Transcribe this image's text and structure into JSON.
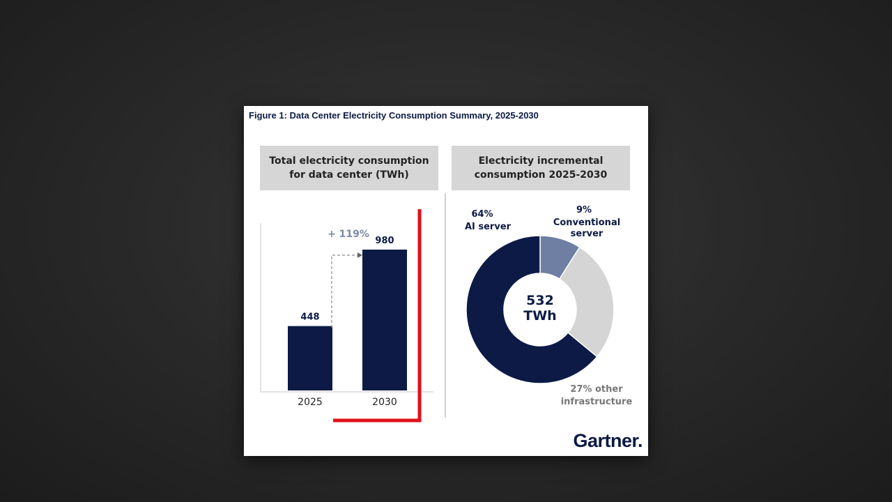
{
  "figure_title": "Figure 1: Data Center Electricity Consumption Summary, 2025-2030",
  "logo": "Gartner",
  "colors": {
    "navy": "#0c1a45",
    "slate": "#6f7fa3",
    "grey": "#d5d5d5",
    "highlight_red": "#e0101a",
    "background": "#2a2a2a"
  },
  "chart_data": [
    {
      "type": "bar",
      "title": "Total electricity consumption\nfor data center (TWh)",
      "categories": [
        "2025",
        "2030"
      ],
      "values": [
        448,
        980
      ],
      "value_labels": [
        "448",
        "980"
      ],
      "annotation": "+ 119%",
      "ylim": [
        0,
        1100
      ],
      "grid": false
    },
    {
      "type": "pie",
      "title": "Electricity incremental\nconsumption 2025-2030",
      "center_label": "532\nTWh",
      "center_value": "532",
      "center_unit": "TWh",
      "slices": [
        {
          "label_line1": "9%",
          "label_line2": "Conventional",
          "label_line3": "server",
          "value": 9
        },
        {
          "label_line1": "27% other",
          "label_line2": "infrastructure",
          "label_line3": "",
          "value": 27
        },
        {
          "label_line1": "64%",
          "label_line2": "AI server",
          "label_line3": "",
          "value": 64
        }
      ]
    }
  ]
}
